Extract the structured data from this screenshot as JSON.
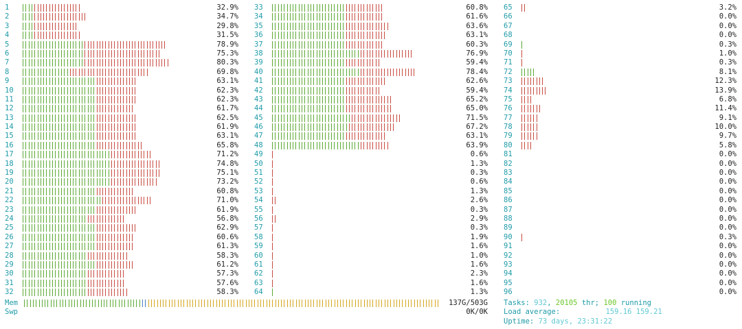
{
  "colors": {
    "cpu_number": "#1f9ba8",
    "bar_user": "#5aa832",
    "bar_kernel": "#c74a3f",
    "mem_used": "#5aa832",
    "mem_buffers": "#4d7bbf",
    "mem_cache": "#d4a51d",
    "text": "#222222"
  },
  "cpu_columns": [
    {
      "cpus": [
        {
          "num": "1",
          "pct": "32.9%",
          "user_fraction": 0.06,
          "kernel_fraction": 0.264
        },
        {
          "num": "2",
          "pct": "34.7%",
          "user_fraction": 0.06,
          "kernel_fraction": 0.287
        },
        {
          "num": "3",
          "pct": "29.8%",
          "user_fraction": 0.06,
          "kernel_fraction": 0.238
        },
        {
          "num": "4",
          "pct": "31.5%",
          "user_fraction": 0.06,
          "kernel_fraction": 0.255
        },
        {
          "num": "5",
          "pct": "78.9%",
          "user_fraction": 0.34,
          "kernel_fraction": 0.449
        },
        {
          "num": "6",
          "pct": "75.3%",
          "user_fraction": 0.34,
          "kernel_fraction": 0.413
        },
        {
          "num": "7",
          "pct": "80.3%",
          "user_fraction": 0.34,
          "kernel_fraction": 0.463
        },
        {
          "num": "8",
          "pct": "69.8%",
          "user_fraction": 0.26,
          "kernel_fraction": 0.438
        },
        {
          "num": "9",
          "pct": "63.1%",
          "user_fraction": 0.4,
          "kernel_fraction": 0.231
        },
        {
          "num": "10",
          "pct": "62.3%",
          "user_fraction": 0.4,
          "kernel_fraction": 0.223
        },
        {
          "num": "11",
          "pct": "62.3%",
          "user_fraction": 0.4,
          "kernel_fraction": 0.223
        },
        {
          "num": "12",
          "pct": "61.7%",
          "user_fraction": 0.4,
          "kernel_fraction": 0.217
        },
        {
          "num": "13",
          "pct": "62.5%",
          "user_fraction": 0.4,
          "kernel_fraction": 0.225
        },
        {
          "num": "14",
          "pct": "61.9%",
          "user_fraction": 0.4,
          "kernel_fraction": 0.219
        },
        {
          "num": "15",
          "pct": "63.1%",
          "user_fraction": 0.4,
          "kernel_fraction": 0.231
        },
        {
          "num": "16",
          "pct": "65.8%",
          "user_fraction": 0.4,
          "kernel_fraction": 0.258
        },
        {
          "num": "17",
          "pct": "71.2%",
          "user_fraction": 0.48,
          "kernel_fraction": 0.232
        },
        {
          "num": "18",
          "pct": "74.8%",
          "user_fraction": 0.48,
          "kernel_fraction": 0.268
        },
        {
          "num": "19",
          "pct": "75.1%",
          "user_fraction": 0.48,
          "kernel_fraction": 0.271
        },
        {
          "num": "20",
          "pct": "73.2%",
          "user_fraction": 0.48,
          "kernel_fraction": 0.252
        },
        {
          "num": "21",
          "pct": "60.8%",
          "user_fraction": 0.4,
          "kernel_fraction": 0.208
        },
        {
          "num": "22",
          "pct": "71.0%",
          "user_fraction": 0.44,
          "kernel_fraction": 0.27
        },
        {
          "num": "23",
          "pct": "61.9%",
          "user_fraction": 0.4,
          "kernel_fraction": 0.219
        },
        {
          "num": "24",
          "pct": "56.8%",
          "user_fraction": 0.36,
          "kernel_fraction": 0.208
        },
        {
          "num": "25",
          "pct": "62.9%",
          "user_fraction": 0.4,
          "kernel_fraction": 0.229
        },
        {
          "num": "26",
          "pct": "60.6%",
          "user_fraction": 0.4,
          "kernel_fraction": 0.206
        },
        {
          "num": "27",
          "pct": "61.3%",
          "user_fraction": 0.4,
          "kernel_fraction": 0.213
        },
        {
          "num": "28",
          "pct": "58.3%",
          "user_fraction": 0.36,
          "kernel_fraction": 0.223
        },
        {
          "num": "29",
          "pct": "61.2%",
          "user_fraction": 0.4,
          "kernel_fraction": 0.212
        },
        {
          "num": "30",
          "pct": "57.3%",
          "user_fraction": 0.36,
          "kernel_fraction": 0.213
        },
        {
          "num": "31",
          "pct": "57.6%",
          "user_fraction": 0.36,
          "kernel_fraction": 0.216
        },
        {
          "num": "32",
          "pct": "58.3%",
          "user_fraction": 0.36,
          "kernel_fraction": 0.223
        }
      ]
    },
    {
      "cpus": [
        {
          "num": "33",
          "pct": "60.8%",
          "user_fraction": 0.4,
          "kernel_fraction": 0.208
        },
        {
          "num": "34",
          "pct": "61.6%",
          "user_fraction": 0.4,
          "kernel_fraction": 0.216
        },
        {
          "num": "35",
          "pct": "63.6%",
          "user_fraction": 0.4,
          "kernel_fraction": 0.236
        },
        {
          "num": "36",
          "pct": "63.1%",
          "user_fraction": 0.4,
          "kernel_fraction": 0.231
        },
        {
          "num": "37",
          "pct": "60.3%",
          "user_fraction": 0.4,
          "kernel_fraction": 0.203
        },
        {
          "num": "38",
          "pct": "76.9%",
          "user_fraction": 0.48,
          "kernel_fraction": 0.289
        },
        {
          "num": "39",
          "pct": "59.4%",
          "user_fraction": 0.4,
          "kernel_fraction": 0.194
        },
        {
          "num": "40",
          "pct": "78.4%",
          "user_fraction": 0.48,
          "kernel_fraction": 0.304
        },
        {
          "num": "41",
          "pct": "62.6%",
          "user_fraction": 0.4,
          "kernel_fraction": 0.226
        },
        {
          "num": "42",
          "pct": "59.4%",
          "user_fraction": 0.4,
          "kernel_fraction": 0.194
        },
        {
          "num": "43",
          "pct": "65.2%",
          "user_fraction": 0.4,
          "kernel_fraction": 0.252
        },
        {
          "num": "44",
          "pct": "65.0%",
          "user_fraction": 0.4,
          "kernel_fraction": 0.25
        },
        {
          "num": "45",
          "pct": "71.5%",
          "user_fraction": 0.44,
          "kernel_fraction": 0.275
        },
        {
          "num": "46",
          "pct": "67.2%",
          "user_fraction": 0.42,
          "kernel_fraction": 0.252
        },
        {
          "num": "47",
          "pct": "63.1%",
          "user_fraction": 0.4,
          "kernel_fraction": 0.231
        },
        {
          "num": "48",
          "pct": "63.9%",
          "user_fraction": 0.48,
          "kernel_fraction": 0.159
        },
        {
          "num": "49",
          "pct": "0.6%",
          "user_fraction": 0.0,
          "kernel_fraction": 0.006
        },
        {
          "num": "50",
          "pct": "1.3%",
          "user_fraction": 0.0,
          "kernel_fraction": 0.013
        },
        {
          "num": "51",
          "pct": "0.3%",
          "user_fraction": 0.0,
          "kernel_fraction": 0.003
        },
        {
          "num": "52",
          "pct": "0.6%",
          "user_fraction": 0.0,
          "kernel_fraction": 0.006
        },
        {
          "num": "53",
          "pct": "1.3%",
          "user_fraction": 0.0,
          "kernel_fraction": 0.013
        },
        {
          "num": "54",
          "pct": "2.6%",
          "user_fraction": 0.0,
          "kernel_fraction": 0.026
        },
        {
          "num": "55",
          "pct": "0.3%",
          "user_fraction": 0.0,
          "kernel_fraction": 0.003
        },
        {
          "num": "56",
          "pct": "2.9%",
          "user_fraction": 0.0,
          "kernel_fraction": 0.029
        },
        {
          "num": "57",
          "pct": "0.3%",
          "user_fraction": 0.0,
          "kernel_fraction": 0.003
        },
        {
          "num": "58",
          "pct": "1.9%",
          "user_fraction": 0.0,
          "kernel_fraction": 0.019
        },
        {
          "num": "59",
          "pct": "1.6%",
          "user_fraction": 0.0,
          "kernel_fraction": 0.016
        },
        {
          "num": "60",
          "pct": "1.0%",
          "user_fraction": 0.0,
          "kernel_fraction": 0.01
        },
        {
          "num": "61",
          "pct": "1.6%",
          "user_fraction": 0.0,
          "kernel_fraction": 0.016
        },
        {
          "num": "62",
          "pct": "2.3%",
          "user_fraction": 0.0,
          "kernel_fraction": 0.023
        },
        {
          "num": "63",
          "pct": "1.6%",
          "user_fraction": 0.0,
          "kernel_fraction": 0.016
        },
        {
          "num": "64",
          "pct": "1.3%",
          "user_fraction": 0.013,
          "kernel_fraction": 0.0
        }
      ]
    },
    {
      "cpus": [
        {
          "num": "65",
          "pct": "3.2%",
          "user_fraction": 0.0,
          "kernel_fraction": 0.032
        },
        {
          "num": "66",
          "pct": "0.0%",
          "user_fraction": 0.0,
          "kernel_fraction": 0.0
        },
        {
          "num": "67",
          "pct": "0.0%",
          "user_fraction": 0.0,
          "kernel_fraction": 0.0
        },
        {
          "num": "68",
          "pct": "0.0%",
          "user_fraction": 0.0,
          "kernel_fraction": 0.0
        },
        {
          "num": "69",
          "pct": "0.3%",
          "user_fraction": 0.003,
          "kernel_fraction": 0.0
        },
        {
          "num": "70",
          "pct": "1.0%",
          "user_fraction": 0.0,
          "kernel_fraction": 0.01
        },
        {
          "num": "71",
          "pct": "0.3%",
          "user_fraction": 0.0,
          "kernel_fraction": 0.003
        },
        {
          "num": "72",
          "pct": "8.1%",
          "user_fraction": 0.081,
          "kernel_fraction": 0.0
        },
        {
          "num": "73",
          "pct": "12.3%",
          "user_fraction": 0.0,
          "kernel_fraction": 0.123
        },
        {
          "num": "74",
          "pct": "13.9%",
          "user_fraction": 0.0,
          "kernel_fraction": 0.139
        },
        {
          "num": "75",
          "pct": "6.8%",
          "user_fraction": 0.0,
          "kernel_fraction": 0.068
        },
        {
          "num": "76",
          "pct": "11.4%",
          "user_fraction": 0.0,
          "kernel_fraction": 0.114
        },
        {
          "num": "77",
          "pct": "9.1%",
          "user_fraction": 0.0,
          "kernel_fraction": 0.091
        },
        {
          "num": "78",
          "pct": "10.0%",
          "user_fraction": 0.0,
          "kernel_fraction": 0.1
        },
        {
          "num": "79",
          "pct": "9.7%",
          "user_fraction": 0.0,
          "kernel_fraction": 0.097
        },
        {
          "num": "80",
          "pct": "5.8%",
          "user_fraction": 0.0,
          "kernel_fraction": 0.058
        },
        {
          "num": "81",
          "pct": "0.0%",
          "user_fraction": 0.0,
          "kernel_fraction": 0.0
        },
        {
          "num": "82",
          "pct": "0.0%",
          "user_fraction": 0.0,
          "kernel_fraction": 0.0
        },
        {
          "num": "83",
          "pct": "0.0%",
          "user_fraction": 0.0,
          "kernel_fraction": 0.0
        },
        {
          "num": "84",
          "pct": "0.0%",
          "user_fraction": 0.0,
          "kernel_fraction": 0.0
        },
        {
          "num": "85",
          "pct": "0.0%",
          "user_fraction": 0.0,
          "kernel_fraction": 0.0
        },
        {
          "num": "86",
          "pct": "0.0%",
          "user_fraction": 0.0,
          "kernel_fraction": 0.0
        },
        {
          "num": "87",
          "pct": "0.0%",
          "user_fraction": 0.0,
          "kernel_fraction": 0.0
        },
        {
          "num": "88",
          "pct": "0.0%",
          "user_fraction": 0.0,
          "kernel_fraction": 0.0
        },
        {
          "num": "89",
          "pct": "0.0%",
          "user_fraction": 0.0,
          "kernel_fraction": 0.0
        },
        {
          "num": "90",
          "pct": "0.3%",
          "user_fraction": 0.0,
          "kernel_fraction": 0.003
        },
        {
          "num": "91",
          "pct": "0.0%",
          "user_fraction": 0.0,
          "kernel_fraction": 0.0
        },
        {
          "num": "92",
          "pct": "0.0%",
          "user_fraction": 0.0,
          "kernel_fraction": 0.0
        },
        {
          "num": "93",
          "pct": "0.0%",
          "user_fraction": 0.0,
          "kernel_fraction": 0.0
        },
        {
          "num": "94",
          "pct": "0.0%",
          "user_fraction": 0.0,
          "kernel_fraction": 0.0
        },
        {
          "num": "95",
          "pct": "0.0%",
          "user_fraction": 0.0,
          "kernel_fraction": 0.0
        },
        {
          "num": "96",
          "pct": "0.0%",
          "user_fraction": 0.0,
          "kernel_fraction": 0.0
        }
      ]
    }
  ],
  "memory": {
    "label": "Mem",
    "value": "137G/503G",
    "used_fraction": 0.272,
    "buffers_fraction": 0.012,
    "cache_fraction": 0.68
  },
  "swap": {
    "label": "Swp",
    "value": "0K/0K",
    "used_fraction": 0.0
  },
  "tasks": {
    "label": "Tasks: ",
    "count": "932",
    "sep1": ", ",
    "threads": "20105",
    "thr_label": " thr; ",
    "running": "100",
    "running_label": " running"
  },
  "load": {
    "label": "Load average: ",
    "one": "159.16",
    "five": "159.21"
  },
  "uptime": {
    "label": "Uptime: ",
    "value": "73 days, 23:31:22"
  }
}
